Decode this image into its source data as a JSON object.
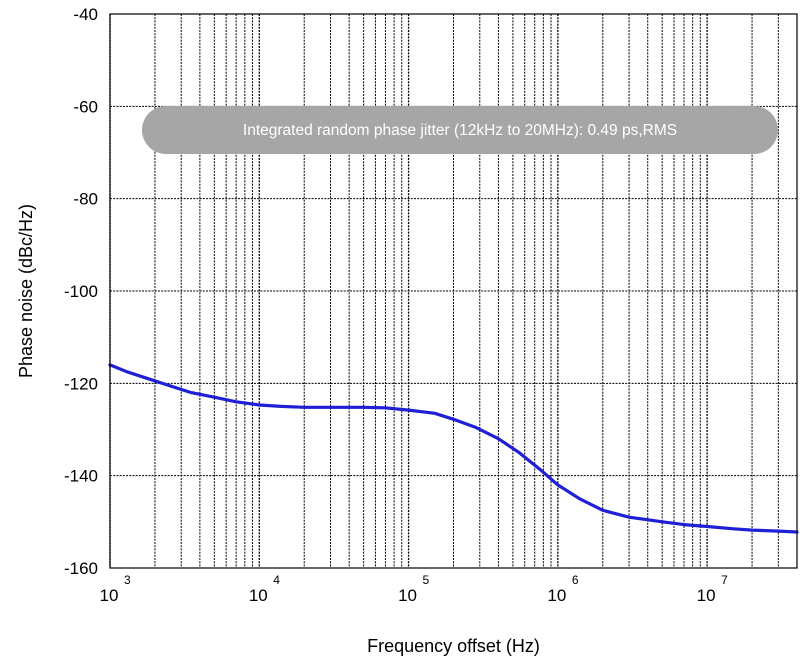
{
  "chart_data": {
    "type": "line",
    "title": "",
    "xlabel": "Frequency offset (Hz)",
    "ylabel": "Phase noise (dBc/Hz)",
    "x_scale": "log",
    "xlim": [
      1000,
      40000000
    ],
    "ylim": [
      -160,
      -40
    ],
    "grid": true,
    "x_ticks": [
      {
        "base": "10",
        "exp": "3",
        "value": 1000
      },
      {
        "base": "10",
        "exp": "4",
        "value": 10000
      },
      {
        "base": "10",
        "exp": "5",
        "value": 100000
      },
      {
        "base": "10",
        "exp": "6",
        "value": 1000000
      },
      {
        "base": "10",
        "exp": "7",
        "value": 10000000
      }
    ],
    "y_ticks": [
      -40,
      -60,
      -80,
      -100,
      -120,
      -140,
      -160
    ],
    "annotation": "Integrated random phase jitter (12kHz to 20MHz): 0.49 ps,RMS",
    "colors": {
      "line": "#1f1fd6",
      "annotation_bg": "#a6a6a6",
      "grid": "#000000"
    },
    "series": [
      {
        "x": [
          1000,
          1300,
          1800,
          2500,
          3500,
          5000,
          7000,
          10000,
          14000,
          20000,
          30000,
          50000,
          70000,
          100000,
          150000,
          200000,
          280000,
          400000,
          550000,
          750000,
          1000000,
          1400000,
          2000000,
          3000000,
          5000000,
          7000000,
          10000000,
          15000000,
          20000000,
          30000000,
          40000000
        ],
        "y": [
          -116,
          -117.5,
          -119,
          -120.5,
          -122,
          -123,
          -124,
          -124.7,
          -125,
          -125.2,
          -125.2,
          -125.2,
          -125.3,
          -125.8,
          -126.5,
          -127.8,
          -129.5,
          -132,
          -135,
          -138.5,
          -142,
          -145,
          -147.5,
          -149,
          -150,
          -150.6,
          -151,
          -151.5,
          -151.8,
          -152,
          -152.2
        ]
      }
    ]
  }
}
